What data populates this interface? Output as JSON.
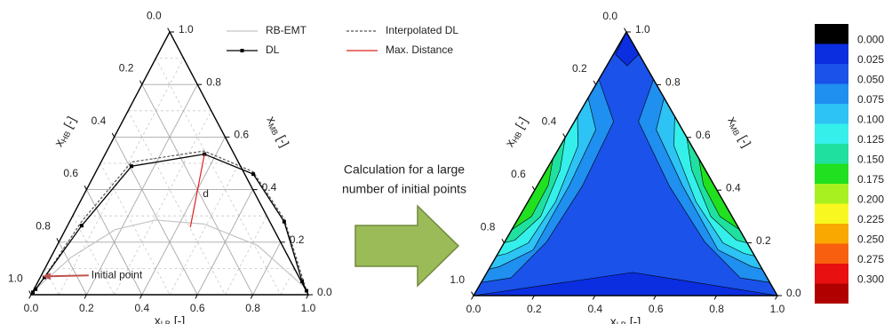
{
  "caption": {
    "lines": [
      "Calculation for a large",
      "number of initial points"
    ]
  },
  "chart_data": [
    {
      "type": "ternary",
      "axes": {
        "bottom": {
          "symbol": "x",
          "subscript": "LB",
          "unit": "[-]",
          "ticks": [
            {
              "value": 0,
              "label": "0.0"
            },
            {
              "value": 0.2,
              "label": "0.2"
            },
            {
              "value": 0.4,
              "label": "0.4"
            },
            {
              "value": 0.6,
              "label": "0.6"
            },
            {
              "value": 0.8,
              "label": "0.8"
            },
            {
              "value": 1,
              "label": "1.0"
            }
          ]
        },
        "left": {
          "symbol": "x",
          "subscript": "HB",
          "unit": "[-]",
          "ticks": [
            {
              "value": 0,
              "label": "0.0"
            },
            {
              "value": 0.2,
              "label": "0.2"
            },
            {
              "value": 0.4,
              "label": "0.4"
            },
            {
              "value": 0.6,
              "label": "0.6"
            },
            {
              "value": 0.8,
              "label": "0.8"
            },
            {
              "value": 1,
              "label": "1.0"
            }
          ]
        },
        "right": {
          "symbol": "x",
          "subscript": "MB",
          "unit": "[-]",
          "ticks": [
            {
              "value": 0,
              "label": "0.0"
            },
            {
              "value": 0.2,
              "label": "0.2"
            },
            {
              "value": 0.4,
              "label": "0.4"
            },
            {
              "value": 0.6,
              "label": "0.6"
            },
            {
              "value": 0.8,
              "label": "0.8"
            },
            {
              "value": 1,
              "label": "1.0"
            }
          ]
        }
      },
      "grid": true,
      "minor_grid": [
        0.1,
        0.3,
        0.5,
        0.7,
        0.9
      ],
      "series": [
        {
          "name": "RB-EMT",
          "color": "#c4c4c4",
          "x_LB": [
            0.006,
            0.073,
            0.18,
            0.307,
            0.49,
            0.724,
            0.96
          ],
          "x_MB": [
            0.021,
            0.142,
            0.248,
            0.284,
            0.269,
            0.187,
            0.036
          ]
        },
        {
          "name": "Interpolated DL",
          "color": "#555555",
          "dash": true,
          "x_LB": [
            0.002,
            0.015,
            0.043,
            0.11,
            0.351,
            0.567,
            0.77,
            0.986
          ],
          "x_MB": [
            0.009,
            0.066,
            0.278,
            0.505,
            0.547,
            0.468,
            0.287,
            0.015
          ]
        },
        {
          "name": "DL",
          "color": "#000000",
          "marker": true,
          "x_LB": [
            0.002,
            0.006,
            0.015,
            0.051,
            0.118,
            0.358,
            0.572,
            0.774,
            0.952,
            0.986
          ],
          "x_MB": [
            0.009,
            0.021,
            0.066,
            0.263,
            0.489,
            0.535,
            0.459,
            0.278,
            0.051,
            0.015
          ]
        },
        {
          "name": "Max. Distance",
          "color": "#e02020",
          "label": "d",
          "x_LB": [
            0.358,
            0.446
          ],
          "x_MB": [
            0.535,
            0.257
          ]
        }
      ],
      "annotations": [
        {
          "text": "Initial point",
          "x_LB": 0.006,
          "x_MB": 0.07,
          "color": "#c0504d"
        }
      ]
    },
    {
      "type": "ternary-contour",
      "axes": {
        "bottom": {
          "symbol": "x",
          "subscript": "LB",
          "unit": "[-]",
          "ticks": [
            {
              "value": 0,
              "label": "0.0"
            },
            {
              "value": 0.2,
              "label": "0.2"
            },
            {
              "value": 0.4,
              "label": "0.4"
            },
            {
              "value": 0.6,
              "label": "0.6"
            },
            {
              "value": 0.8,
              "label": "0.8"
            },
            {
              "value": 1,
              "label": "1.0"
            }
          ]
        },
        "left": {
          "symbol": "x",
          "subscript": "HB",
          "unit": "[-]",
          "ticks": [
            {
              "value": 0,
              "label": "0.0"
            },
            {
              "value": 0.2,
              "label": "0.2"
            },
            {
              "value": 0.4,
              "label": "0.4"
            },
            {
              "value": 0.6,
              "label": "0.6"
            },
            {
              "value": 0.8,
              "label": "0.8"
            },
            {
              "value": 1,
              "label": "1.0"
            }
          ]
        },
        "right": {
          "symbol": "x",
          "subscript": "MB",
          "unit": "[-]",
          "ticks": [
            {
              "value": 0,
              "label": "0.0"
            },
            {
              "value": 0.2,
              "label": "0.2"
            },
            {
              "value": 0.4,
              "label": "0.4"
            },
            {
              "value": 0.6,
              "label": "0.6"
            },
            {
              "value": 0.8,
              "label": "0.8"
            },
            {
              "value": 1,
              "label": "1.0"
            }
          ]
        }
      },
      "regions": [
        {
          "color": "#1a52ea",
          "x_LB": [
            0,
            1,
            0
          ],
          "x_MB": [
            0,
            0,
            1
          ]
        },
        {
          "color": "#0a2ee0",
          "x_LB": [
            0,
            0.48,
            1
          ],
          "x_MB": [
            0,
            0.088,
            0
          ]
        },
        {
          "color": "#0a2ee0",
          "x_LB": [
            0,
            0.083,
            0.067,
            0.007
          ],
          "x_MB": [
            1,
            0.915,
            0.872,
            0.915
          ]
        },
        {
          "color": "#1f8ff0",
          "x_LB": [
            0,
            0,
            0.129,
            0.149,
            0.138,
            0.089
          ],
          "x_MB": [
            0.05,
            0.82,
            0.66,
            0.416,
            0.204,
            0.067
          ]
        },
        {
          "color": "#1f8ff0",
          "x_LB": [
            0.95,
            0.18,
            0.211,
            0.435,
            0.658,
            0.844
          ],
          "x_MB": [
            0.05,
            0.82,
            0.66,
            0.416,
            0.204,
            0.067
          ]
        },
        {
          "color": "#2dc3f5",
          "x_LB": [
            0,
            0,
            0.086,
            0.105,
            0.109,
            0.03
          ],
          "x_MB": [
            0.1,
            0.75,
            0.629,
            0.416,
            0.173,
            0.11
          ]
        },
        {
          "color": "#2dc3f5",
          "x_LB": [
            0.9,
            0.25,
            0.285,
            0.479,
            0.718,
            0.86
          ],
          "x_MB": [
            0.1,
            0.75,
            0.629,
            0.416,
            0.173,
            0.11
          ]
        },
        {
          "color": "#35f0ea",
          "x_LB": [
            0,
            0,
            0.058,
            0.091,
            0.08,
            0.03
          ],
          "x_MB": [
            0.15,
            0.68,
            0.568,
            0.356,
            0.2,
            0.16
          ]
        },
        {
          "color": "#35f0ea",
          "x_LB": [
            0.85,
            0.32,
            0.374,
            0.553,
            0.72,
            0.81
          ],
          "x_MB": [
            0.15,
            0.68,
            0.568,
            0.356,
            0.2,
            0.16
          ]
        },
        {
          "color": "#20e0a0",
          "x_LB": [
            0,
            0,
            0.045,
            0.07,
            0.03
          ],
          "x_MB": [
            0.2,
            0.6,
            0.477,
            0.3,
            0.21
          ]
        },
        {
          "color": "#20e0a0",
          "x_LB": [
            0.8,
            0.4,
            0.478,
            0.63,
            0.76
          ],
          "x_MB": [
            0.2,
            0.6,
            0.477,
            0.3,
            0.21
          ]
        },
        {
          "color": "#20e020",
          "x_LB": [
            0,
            0,
            0.035,
            0.04
          ],
          "x_MB": [
            0.25,
            0.52,
            0.42,
            0.3
          ]
        },
        {
          "color": "#20e020",
          "x_LB": [
            0.75,
            0.48,
            0.545,
            0.66
          ],
          "x_MB": [
            0.25,
            0.52,
            0.42,
            0.3
          ]
        }
      ],
      "colorbar": {
        "levels": [
          {
            "value": 0,
            "label": "0.000"
          },
          {
            "value": 0.025,
            "label": "0.025"
          },
          {
            "value": 0.05,
            "label": "0.050"
          },
          {
            "value": 0.075,
            "label": "0.075"
          },
          {
            "value": 0.1,
            "label": "0.100"
          },
          {
            "value": 0.125,
            "label": "0.125"
          },
          {
            "value": 0.15,
            "label": "0.150"
          },
          {
            "value": 0.175,
            "label": "0.175"
          },
          {
            "value": 0.2,
            "label": "0.200"
          },
          {
            "value": 0.225,
            "label": "0.225"
          },
          {
            "value": 0.25,
            "label": "0.250"
          },
          {
            "value": 0.275,
            "label": "0.275"
          },
          {
            "value": 0.3,
            "label": "0.300"
          }
        ],
        "colors": [
          "#000000",
          "#0a2ee0",
          "#1a52ea",
          "#1f8ff0",
          "#2dc3f5",
          "#35f0ea",
          "#20e0a0",
          "#20e020",
          "#a8f020",
          "#f8f820",
          "#f8a800",
          "#f86010",
          "#e81010",
          "#b00000"
        ]
      }
    }
  ]
}
